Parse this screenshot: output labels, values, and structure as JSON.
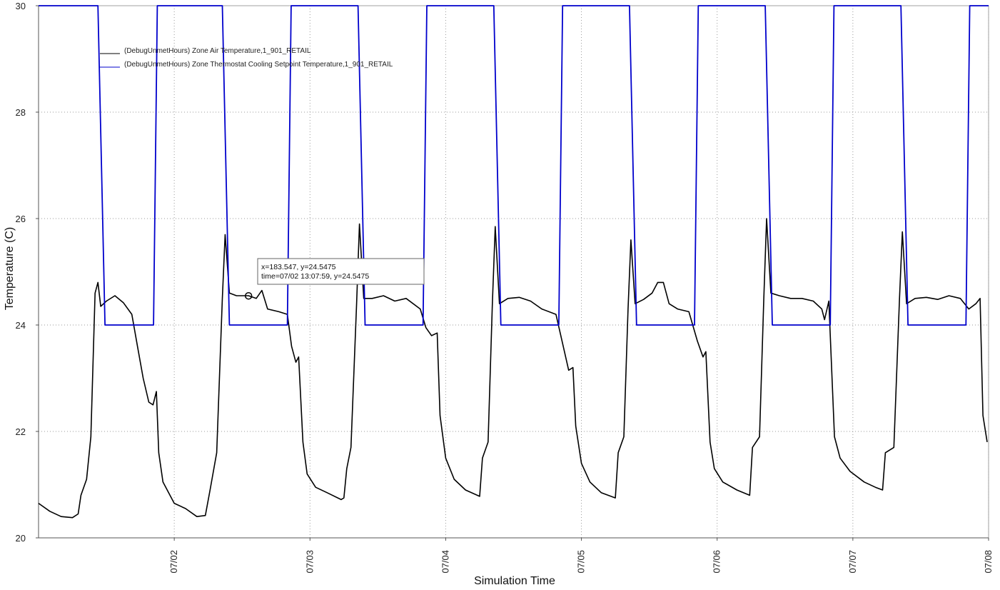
{
  "chart_data": {
    "type": "line",
    "title": "",
    "xlabel": "Simulation Time",
    "ylabel": "Temperature (C)",
    "ylim": [
      20,
      30
    ],
    "xlim": [
      "07/01 00:00",
      "07/08 00:00"
    ],
    "grid": true,
    "legend_position": "top-left",
    "y_ticks": [
      "20",
      "22",
      "24",
      "26",
      "28",
      "30"
    ],
    "x_ticks": [
      "07/02",
      "07/03",
      "07/04",
      "07/05",
      "07/06",
      "07/07",
      "07/08"
    ],
    "series": [
      {
        "name": "(DebugUnmetHours) Zone Air Temperature,1_901_RETAIL",
        "color": "#000000",
        "points": [
          [
            "07/01 00:00",
            20.65
          ],
          [
            "07/01 02:00",
            20.5
          ],
          [
            "07/01 04:00",
            20.4
          ],
          [
            "07/01 06:00",
            20.38
          ],
          [
            "07/01 07:00",
            20.45
          ],
          [
            "07/01 07:30",
            20.8
          ],
          [
            "07/01 08:30",
            21.1
          ],
          [
            "07/01 09:15",
            21.9
          ],
          [
            "07/01 10:00",
            24.6
          ],
          [
            "07/01 10:30",
            24.8
          ],
          [
            "07/01 11:00",
            24.35
          ],
          [
            "07/01 12:00",
            24.45
          ],
          [
            "07/01 13:30",
            24.55
          ],
          [
            "07/01 15:00",
            24.42
          ],
          [
            "07/01 16:30",
            24.2
          ],
          [
            "07/01 17:30",
            23.6
          ],
          [
            "07/01 18:30",
            23.0
          ],
          [
            "07/01 19:30",
            22.55
          ],
          [
            "07/01 20:15",
            22.5
          ],
          [
            "07/01 20:50",
            22.75
          ],
          [
            "07/01 21:15",
            21.6
          ],
          [
            "07/01 22:00",
            21.05
          ],
          [
            "07/02 00:00",
            20.65
          ],
          [
            "07/02 02:00",
            20.55
          ],
          [
            "07/02 04:00",
            20.4
          ],
          [
            "07/02 05:30",
            20.42
          ],
          [
            "07/02 06:20",
            20.9
          ],
          [
            "07/02 07:30",
            21.6
          ],
          [
            "07/02 08:30",
            24.5
          ],
          [
            "07/02 09:00",
            25.7
          ],
          [
            "07/02 09:45",
            24.6
          ],
          [
            "07/02 11:00",
            24.55
          ],
          [
            "07/02 13:08",
            24.55
          ],
          [
            "07/02 14:30",
            24.5
          ],
          [
            "07/02 15:30",
            24.65
          ],
          [
            "07/02 16:30",
            24.3
          ],
          [
            "07/02 18:30",
            24.25
          ],
          [
            "07/02 20:00",
            24.2
          ],
          [
            "07/02 20:45",
            23.6
          ],
          [
            "07/02 21:30",
            23.3
          ],
          [
            "07/02 22:00",
            23.4
          ],
          [
            "07/02 22:45",
            21.8
          ],
          [
            "07/02 23:30",
            21.2
          ],
          [
            "07/03 01:00",
            20.95
          ],
          [
            "07/03 03:00",
            20.85
          ],
          [
            "07/03 05:30",
            20.72
          ],
          [
            "07/03 06:00",
            20.75
          ],
          [
            "07/03 06:30",
            21.3
          ],
          [
            "07/03 07:15",
            21.7
          ],
          [
            "07/03 08:15",
            24.4
          ],
          [
            "07/03 08:45",
            25.9
          ],
          [
            "07/03 09:30",
            24.5
          ],
          [
            "07/03 11:00",
            24.5
          ],
          [
            "07/03 13:00",
            24.55
          ],
          [
            "07/03 15:00",
            24.45
          ],
          [
            "07/03 17:00",
            24.5
          ],
          [
            "07/03 19:30",
            24.3
          ],
          [
            "07/03 20:30",
            23.95
          ],
          [
            "07/03 21:30",
            23.8
          ],
          [
            "07/03 22:30",
            23.85
          ],
          [
            "07/03 23:00",
            22.3
          ],
          [
            "07/04 00:00",
            21.5
          ],
          [
            "07/04 01:30",
            21.1
          ],
          [
            "07/04 03:30",
            20.9
          ],
          [
            "07/04 06:00",
            20.78
          ],
          [
            "07/04 06:30",
            21.5
          ],
          [
            "07/04 07:30",
            21.8
          ],
          [
            "07/04 08:15",
            24.4
          ],
          [
            "07/04 08:45",
            25.85
          ],
          [
            "07/04 09:30",
            24.4
          ],
          [
            "07/04 11:00",
            24.5
          ],
          [
            "07/04 13:00",
            24.52
          ],
          [
            "07/04 15:00",
            24.45
          ],
          [
            "07/04 17:00",
            24.3
          ],
          [
            "07/04 19:30",
            24.2
          ],
          [
            "07/04 21:00",
            23.5
          ],
          [
            "07/04 21:45",
            23.15
          ],
          [
            "07/04 22:30",
            23.2
          ],
          [
            "07/04 23:00",
            22.1
          ],
          [
            "07/05 00:00",
            21.4
          ],
          [
            "07/05 01:30",
            21.05
          ],
          [
            "07/05 03:30",
            20.85
          ],
          [
            "07/05 06:00",
            20.75
          ],
          [
            "07/05 06:30",
            21.6
          ],
          [
            "07/05 07:30",
            21.9
          ],
          [
            "07/05 08:15",
            24.3
          ],
          [
            "07/05 08:45",
            25.6
          ],
          [
            "07/05 09:30",
            24.4
          ],
          [
            "07/05 11:00",
            24.48
          ],
          [
            "07/05 12:30",
            24.6
          ],
          [
            "07/05 13:30",
            24.8
          ],
          [
            "07/05 14:30",
            24.8
          ],
          [
            "07/05 15:30",
            24.4
          ],
          [
            "07/05 17:00",
            24.3
          ],
          [
            "07/05 19:00",
            24.25
          ],
          [
            "07/05 20:30",
            23.7
          ],
          [
            "07/05 21:30",
            23.4
          ],
          [
            "07/05 22:00",
            23.5
          ],
          [
            "07/05 22:45",
            21.8
          ],
          [
            "07/05 23:30",
            21.3
          ],
          [
            "07/06 01:00",
            21.05
          ],
          [
            "07/06 03:30",
            20.9
          ],
          [
            "07/06 05:45",
            20.8
          ],
          [
            "07/06 06:15",
            21.7
          ],
          [
            "07/06 07:30",
            21.9
          ],
          [
            "07/06 08:15",
            24.5
          ],
          [
            "07/06 08:45",
            26.0
          ],
          [
            "07/06 09:30",
            24.6
          ],
          [
            "07/06 11:00",
            24.55
          ],
          [
            "07/06 13:00",
            24.5
          ],
          [
            "07/06 15:00",
            24.5
          ],
          [
            "07/06 17:00",
            24.45
          ],
          [
            "07/06 18:30",
            24.3
          ],
          [
            "07/06 19:00",
            24.1
          ],
          [
            "07/06 19:45",
            24.45
          ],
          [
            "07/06 20:45",
            21.9
          ],
          [
            "07/06 21:45",
            21.5
          ],
          [
            "07/06 23:30",
            21.25
          ],
          [
            "07/07 02:00",
            21.05
          ],
          [
            "07/07 04:00",
            20.95
          ],
          [
            "07/07 05:15",
            20.9
          ],
          [
            "07/07 05:45",
            21.6
          ],
          [
            "07/07 07:15",
            21.7
          ],
          [
            "07/07 08:15",
            24.5
          ],
          [
            "07/07 08:45",
            25.75
          ],
          [
            "07/07 09:30",
            24.4
          ],
          [
            "07/07 11:00",
            24.5
          ],
          [
            "07/07 13:00",
            24.52
          ],
          [
            "07/07 15:00",
            24.48
          ],
          [
            "07/07 17:00",
            24.55
          ],
          [
            "07/07 19:00",
            24.5
          ],
          [
            "07/07 20:30",
            24.3
          ],
          [
            "07/07 21:45",
            24.4
          ],
          [
            "07/07 22:30",
            24.5
          ],
          [
            "07/07 23:00",
            22.3
          ],
          [
            "07/07 23:45",
            21.8
          ]
        ]
      },
      {
        "name": "(DebugUnmetHours) Zone Thermostat Cooling Setpoint Temperature,1_901_RETAIL",
        "color": "#0000cc",
        "points": [
          [
            "07/01 00:00",
            30
          ],
          [
            "07/01 10:30",
            30
          ],
          [
            "07/01 11:45",
            24
          ],
          [
            "07/01 20:20",
            24
          ],
          [
            "07/01 21:00",
            30
          ],
          [
            "07/02 08:30",
            30
          ],
          [
            "07/02 09:45",
            24
          ],
          [
            "07/02 20:00",
            24
          ],
          [
            "07/02 20:40",
            30
          ],
          [
            "07/03 08:30",
            30
          ],
          [
            "07/03 09:45",
            24
          ],
          [
            "07/03 20:00",
            24
          ],
          [
            "07/03 20:40",
            30
          ],
          [
            "07/04 08:30",
            30
          ],
          [
            "07/04 09:45",
            24
          ],
          [
            "07/04 20:00",
            24
          ],
          [
            "07/04 20:40",
            30
          ],
          [
            "07/05 08:30",
            30
          ],
          [
            "07/05 09:45",
            24
          ],
          [
            "07/05 20:00",
            24
          ],
          [
            "07/05 20:40",
            30
          ],
          [
            "07/06 08:30",
            30
          ],
          [
            "07/06 09:45",
            24
          ],
          [
            "07/06 20:00",
            24
          ],
          [
            "07/06 20:40",
            30
          ],
          [
            "07/07 08:30",
            30
          ],
          [
            "07/07 09:45",
            24
          ],
          [
            "07/07 20:00",
            24
          ],
          [
            "07/07 20:40",
            30
          ],
          [
            "07/08 00:00",
            30
          ]
        ]
      }
    ],
    "annotation": {
      "marker_point": [
        "07/02 13:08",
        24.5475
      ],
      "line1": "x=183.547, y=24.5475",
      "line2": "time=07/02 13:07:59, y=24.5475"
    }
  }
}
